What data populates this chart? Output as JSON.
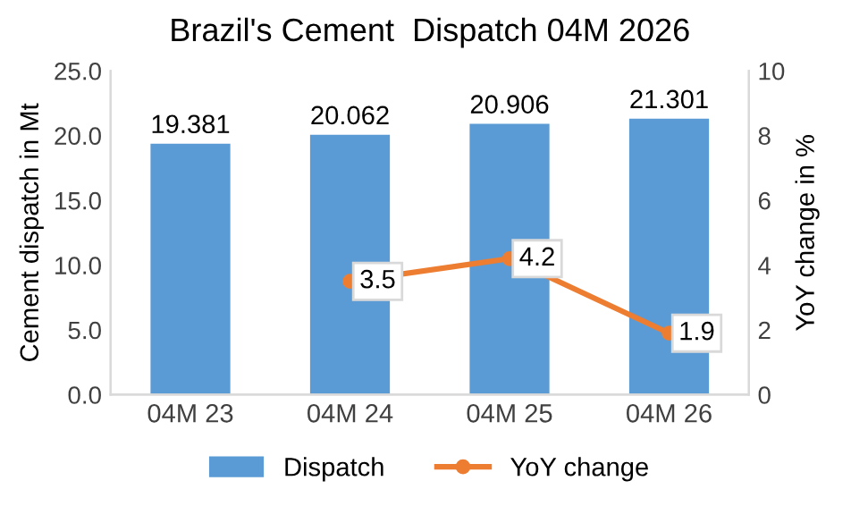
{
  "chart_data": {
    "type": "bar",
    "title": "Brazil's Cement  Dispatch 04M 2026",
    "categories": [
      "04M 23",
      "04M 24",
      "04M 25",
      "04M 26"
    ],
    "series": [
      {
        "name": "Dispatch",
        "color": "#5b9bd5",
        "values": [
          19.381,
          20.062,
          20.906,
          21.301
        ]
      },
      {
        "name": "YoY change",
        "type": "line",
        "axis": "y2",
        "color": "#ed7d31",
        "marker": "circle",
        "values": [
          null,
          3.5,
          4.2,
          1.9
        ]
      }
    ],
    "ylabel": "Cement dispatch in Mt",
    "y2label": "YoY change in %",
    "ylim": [
      0,
      25
    ],
    "yticks": [
      {
        "value": 0,
        "label": "0.0"
      },
      {
        "value": 5,
        "label": "5.0"
      },
      {
        "value": 10,
        "label": "10.0"
      },
      {
        "value": 15,
        "label": "15.0"
      },
      {
        "value": 20,
        "label": "20.0"
      },
      {
        "value": 25,
        "label": "25.0"
      }
    ],
    "y2lim": [
      0,
      10
    ],
    "y2ticks": [
      0,
      2,
      4,
      6,
      8,
      10
    ],
    "data_labels": true,
    "grid": false,
    "legend": "bottom"
  }
}
